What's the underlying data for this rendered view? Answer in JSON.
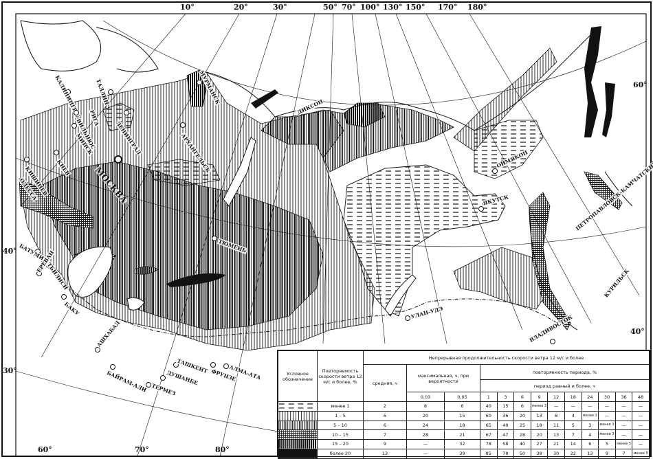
{
  "degree_labels": {
    "top": [
      "10°",
      "20°",
      "30°",
      "50°",
      "70°",
      "100°",
      "130°",
      "150°",
      "170°",
      "180°"
    ],
    "left": [
      "40°",
      "30°"
    ],
    "bottom": [
      "60°",
      "70°",
      "80°"
    ],
    "right": [
      "60°",
      "40°"
    ]
  },
  "cities": {
    "kaliningrad": "КАЛИНИНГРАД",
    "tallin": "ТАЛЛИН",
    "riga": "РИГА",
    "vilnius": "ВИЛЬНЮС",
    "minsk": "МИНСК",
    "leningrad": "ЛЕНИНГРАД",
    "kiev": "КИЕВ",
    "kishinev": "КИШИНЕВ",
    "odessa": "ОДЕССА",
    "moskva": "МОСКВА",
    "murmansk": "МУРМАНСК",
    "arkhangelsk": "АРХАНГЕЛЬСК",
    "dikson": "ДИКСОН",
    "tyumen": "ТЮМЕНЬ",
    "batumi": "БАТУМИ",
    "tbilisi": "ТБИЛИСИ",
    "erevan": "ЕРЕВАН",
    "baku": "БАКУ",
    "ashkhabad": "АШХАБАД",
    "bayram_ali": "БАЙРАМ-АЛИ",
    "termez": "ТЕРМЕЗ",
    "dushanbe": "ДУШАНБЕ",
    "tashkent": "ТАШКЕНТ",
    "frunze": "ФРУНЗЕ",
    "alma_ata": "АЛМА-АТА",
    "ulan_ude": "УЛАН-УДЭ",
    "yakutsk": "ЯКУТСК",
    "oymyakon": "ОЙМЯКОН",
    "petropavlovsk": "ПЕТРОПАВЛОВСК-КАМЧАТСКИЙ",
    "vladivostok": "ВЛАДИВОСТОК",
    "kurilsk": "КУРИЛЬСК"
  },
  "legend": {
    "col_symbol": "Условное обозначение",
    "col_frequency": "Повторяемость скорости ветра 12 м/с и более, %",
    "col_duration": "Непрерывная продолжительность скорости ветра 12 м/с и более",
    "col_average": "средняя, ч",
    "col_max": "максимальная, ч, при вероятности",
    "max_probs": [
      "0,03",
      "0,05"
    ],
    "col_recurrence": "повторяемость периода, %",
    "col_period": "период равный и более, ч",
    "periods": [
      "1",
      "3",
      "6",
      "9",
      "12",
      "18",
      "24",
      "30",
      "36",
      "48"
    ],
    "rows": [
      {
        "pattern": "dashes",
        "freq": "менее 1",
        "avg": "2",
        "max003": "8",
        "max005": "6",
        "rec": [
          "40",
          "15",
          "6",
          "менее 3",
          "—",
          "—",
          "—",
          "—",
          "—",
          "—"
        ]
      },
      {
        "pattern": "sparse-vertical",
        "freq": "1 – 5",
        "avg": "5",
        "max003": "20",
        "max005": "15",
        "rec": [
          "60",
          "36",
          "20",
          "13",
          "8",
          "4",
          "менее 3",
          "—",
          "—",
          "—"
        ]
      },
      {
        "pattern": "dense-vertical",
        "freq": "5 – 10",
        "avg": "6",
        "max003": "24",
        "max005": "18",
        "rec": [
          "65",
          "40",
          "25",
          "18",
          "11",
          "5",
          "3",
          "менее 3",
          "—",
          "—"
        ]
      },
      {
        "pattern": "crosshatch",
        "freq": "10 – 15",
        "avg": "7",
        "max003": "28",
        "max005": "21",
        "rec": [
          "67",
          "47",
          "28",
          "20",
          "13",
          "7",
          "4",
          "менее 3",
          "—",
          "—"
        ]
      },
      {
        "pattern": "heavy-vertical",
        "freq": "15 – 20",
        "avg": "9",
        "max003": "—",
        "max005": "32",
        "rec": [
          "78",
          "58",
          "40",
          "27",
          "21",
          "14",
          "6",
          "5",
          "менее 5",
          "—"
        ]
      },
      {
        "pattern": "solid-black",
        "freq": "более 20",
        "avg": "13",
        "max003": "—",
        "max005": "39",
        "rec": [
          "85",
          "78",
          "50",
          "38",
          "30",
          "22",
          "13",
          "9",
          "7",
          "менее 5"
        ]
      }
    ]
  }
}
